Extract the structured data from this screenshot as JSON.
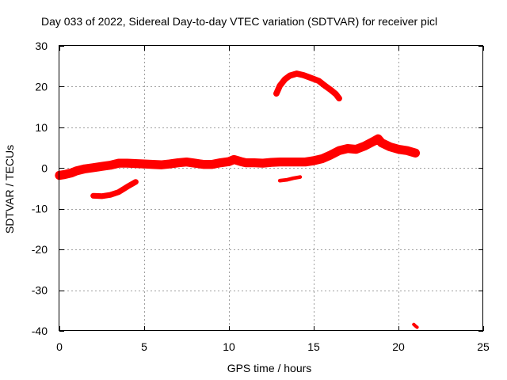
{
  "chart_data": {
    "type": "scatter",
    "title": "Day 033 of 2022, Sidereal Day-to-day VTEC variation (SDTVAR) for receiver picl",
    "xlabel": "GPS time / hours",
    "ylabel": "SDTVAR / TECUs",
    "xlim": [
      0,
      25
    ],
    "ylim": [
      -40,
      30
    ],
    "x_ticks": [
      0,
      5,
      10,
      15,
      20,
      25
    ],
    "y_ticks": [
      -40,
      -30,
      -20,
      -10,
      0,
      10,
      20,
      30
    ],
    "x_tick_labels": [
      "0",
      "5",
      "10",
      "15",
      "20",
      "25"
    ],
    "y_tick_labels": [
      "-40",
      "-30",
      "-20",
      "-10",
      "0",
      "10",
      "20",
      "30"
    ],
    "grid": true,
    "legend": "none",
    "color": "#ff0000",
    "series": [
      {
        "name": "main-band",
        "spread": 2.2,
        "points": [
          [
            0.0,
            -1.8
          ],
          [
            0.3,
            -1.6
          ],
          [
            0.7,
            -1.2
          ],
          [
            1.0,
            -0.7
          ],
          [
            1.5,
            -0.2
          ],
          [
            2.0,
            0.1
          ],
          [
            2.5,
            0.4
          ],
          [
            3.0,
            0.7
          ],
          [
            3.5,
            1.2
          ],
          [
            4.0,
            1.2
          ],
          [
            4.5,
            1.1
          ],
          [
            5.0,
            1.0
          ],
          [
            5.5,
            0.9
          ],
          [
            6.0,
            0.8
          ],
          [
            6.5,
            1.0
          ],
          [
            7.0,
            1.3
          ],
          [
            7.5,
            1.5
          ],
          [
            8.0,
            1.2
          ],
          [
            8.5,
            0.9
          ],
          [
            9.0,
            0.9
          ],
          [
            9.5,
            1.3
          ],
          [
            10.0,
            1.6
          ],
          [
            10.3,
            2.1
          ],
          [
            10.7,
            1.6
          ],
          [
            11.0,
            1.3
          ],
          [
            11.5,
            1.3
          ],
          [
            12.0,
            1.2
          ],
          [
            12.5,
            1.4
          ],
          [
            13.0,
            1.5
          ],
          [
            13.5,
            1.5
          ],
          [
            14.0,
            1.5
          ],
          [
            14.5,
            1.5
          ],
          [
            15.0,
            1.8
          ],
          [
            15.5,
            2.3
          ],
          [
            16.0,
            3.2
          ],
          [
            16.5,
            4.3
          ],
          [
            17.0,
            4.8
          ],
          [
            17.5,
            4.6
          ],
          [
            18.0,
            5.4
          ],
          [
            18.5,
            6.5
          ],
          [
            18.8,
            7.2
          ],
          [
            19.0,
            6.2
          ],
          [
            19.5,
            5.2
          ],
          [
            20.0,
            4.6
          ],
          [
            20.5,
            4.3
          ],
          [
            21.0,
            3.7
          ]
        ]
      },
      {
        "name": "lower-arc",
        "spread": 1.4,
        "points": [
          [
            2.0,
            -6.8
          ],
          [
            2.5,
            -6.9
          ],
          [
            3.0,
            -6.6
          ],
          [
            3.5,
            -5.9
          ],
          [
            4.0,
            -4.6
          ],
          [
            4.5,
            -3.4
          ]
        ]
      },
      {
        "name": "upper-arc",
        "spread": 1.5,
        "points": [
          [
            12.8,
            18.3
          ],
          [
            13.0,
            20.2
          ],
          [
            13.3,
            21.8
          ],
          [
            13.6,
            22.7
          ],
          [
            14.0,
            23.2
          ],
          [
            14.4,
            22.8
          ],
          [
            14.8,
            22.2
          ],
          [
            15.3,
            21.4
          ],
          [
            15.7,
            20.1
          ],
          [
            16.0,
            19.2
          ],
          [
            16.3,
            18.2
          ],
          [
            16.5,
            17.1
          ]
        ]
      },
      {
        "name": "small-segment",
        "spread": 0.9,
        "points": [
          [
            13.0,
            -3.1
          ],
          [
            13.4,
            -2.9
          ],
          [
            13.8,
            -2.5
          ],
          [
            14.2,
            -2.2
          ]
        ]
      },
      {
        "name": "outlier",
        "spread": 0.8,
        "points": [
          [
            20.9,
            -38.4
          ],
          [
            21.0,
            -38.8
          ],
          [
            21.1,
            -39.1
          ]
        ]
      }
    ]
  }
}
